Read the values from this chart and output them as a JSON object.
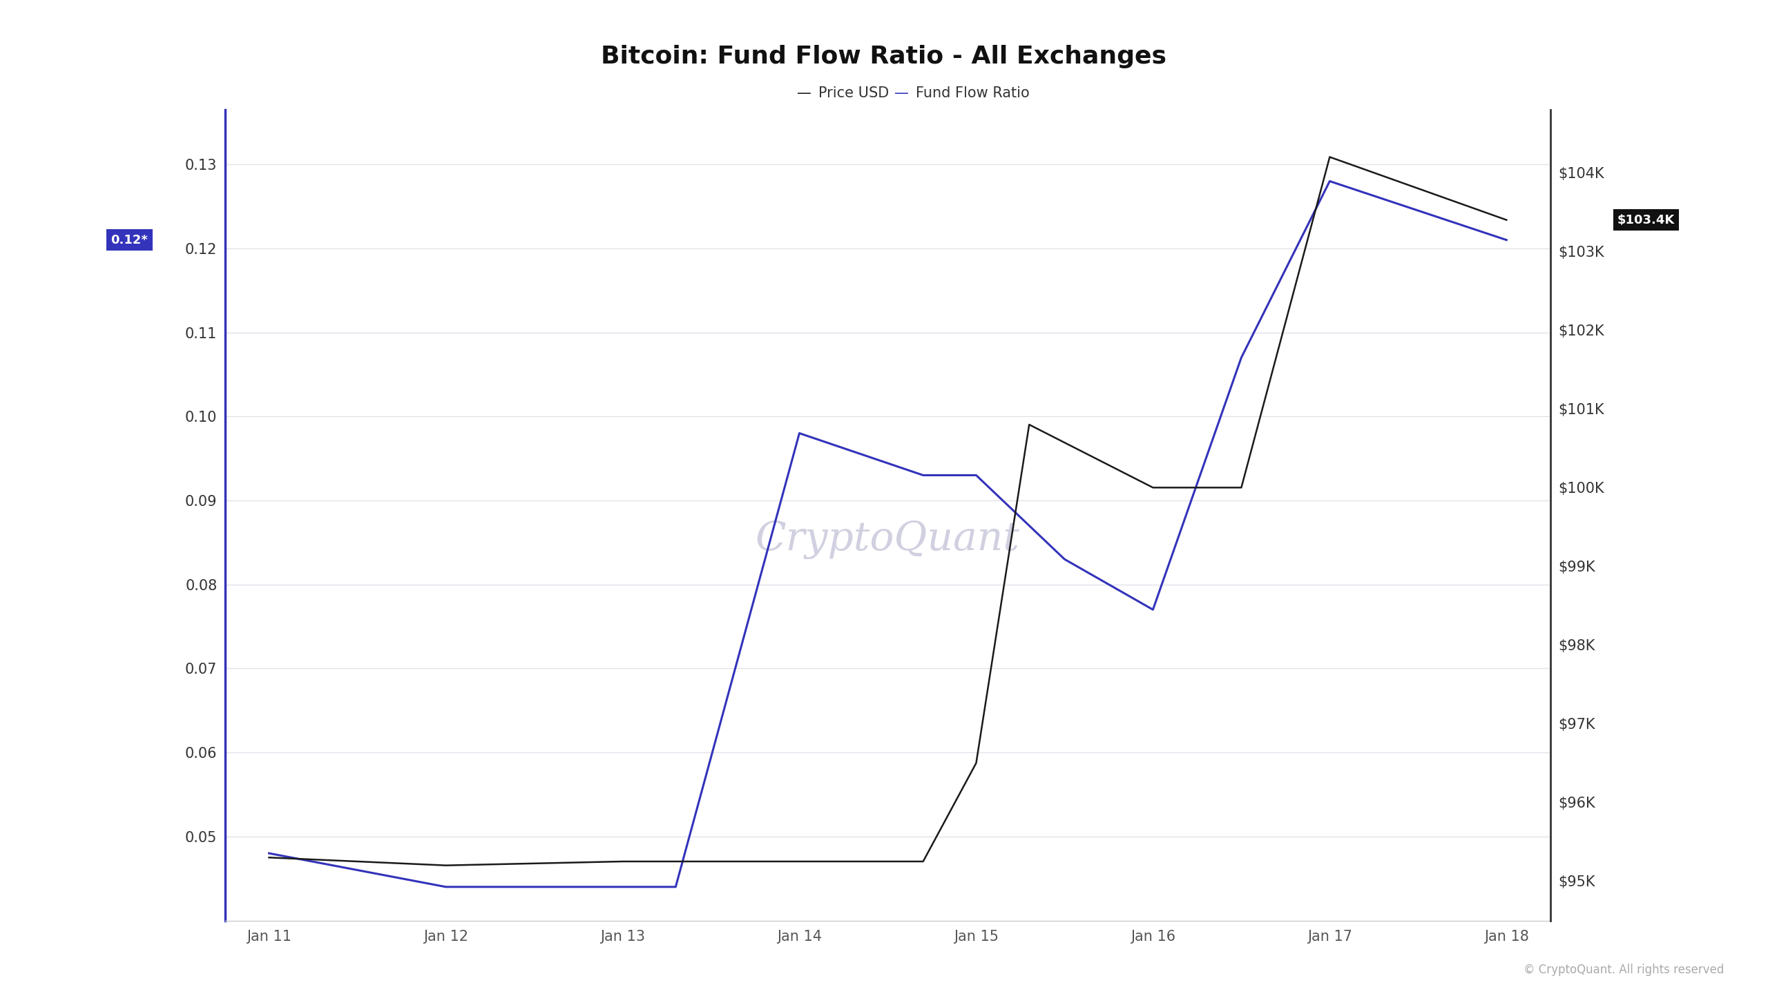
{
  "title": "Bitcoin: Fund Flow Ratio - All Exchanges",
  "legend_labels": [
    "Price USD",
    "Fund Flow Ratio"
  ],
  "price_color": "#1a1a1a",
  "ffr_color": "#3333bb",
  "background_color": "#ffffff",
  "plot_bg_color": "#ffffff",
  "watermark": "CryptoQuant",
  "footer": "© CryptoQuant. All rights reserved",
  "x_labels": [
    "Jan 11",
    "Jan 12",
    "Jan 13",
    "Jan 14",
    "Jan 15",
    "Jan 16",
    "Jan 17",
    "Jan 18"
  ],
  "x_values": [
    0,
    1,
    2,
    3,
    4,
    5,
    6,
    7
  ],
  "price_data": {
    "x": [
      0,
      1,
      2,
      3,
      3.7,
      4,
      4.3,
      5,
      5.5,
      6,
      7
    ],
    "y": [
      95300,
      95200,
      95250,
      95250,
      95250,
      96500,
      100800,
      100000,
      100000,
      104200,
      103400
    ]
  },
  "ffr_data": {
    "x": [
      0,
      1,
      2,
      2.3,
      3,
      3.7,
      4,
      4.5,
      5,
      5.5,
      6,
      7
    ],
    "y": [
      0.048,
      0.044,
      0.044,
      0.044,
      0.098,
      0.093,
      0.093,
      0.083,
      0.077,
      0.107,
      0.128,
      0.121
    ]
  },
  "ylim_left": [
    0.04,
    0.1365
  ],
  "ylim_right": [
    94500,
    104800
  ],
  "yticks_left": [
    0.05,
    0.06,
    0.07,
    0.08,
    0.09,
    0.1,
    0.11,
    0.12,
    0.13
  ],
  "yticks_right": [
    95000,
    96000,
    97000,
    98000,
    99000,
    100000,
    101000,
    102000,
    103000,
    104000
  ],
  "current_ffr_label": "0.12*",
  "current_price_label": "$103.4K",
  "grid_color": "#e0e0e8",
  "title_fontsize": 26,
  "legend_fontsize": 15,
  "tick_fontsize": 15,
  "watermark_fontsize": 42,
  "watermark_color": "#d0d0e0",
  "footer_fontsize": 12
}
